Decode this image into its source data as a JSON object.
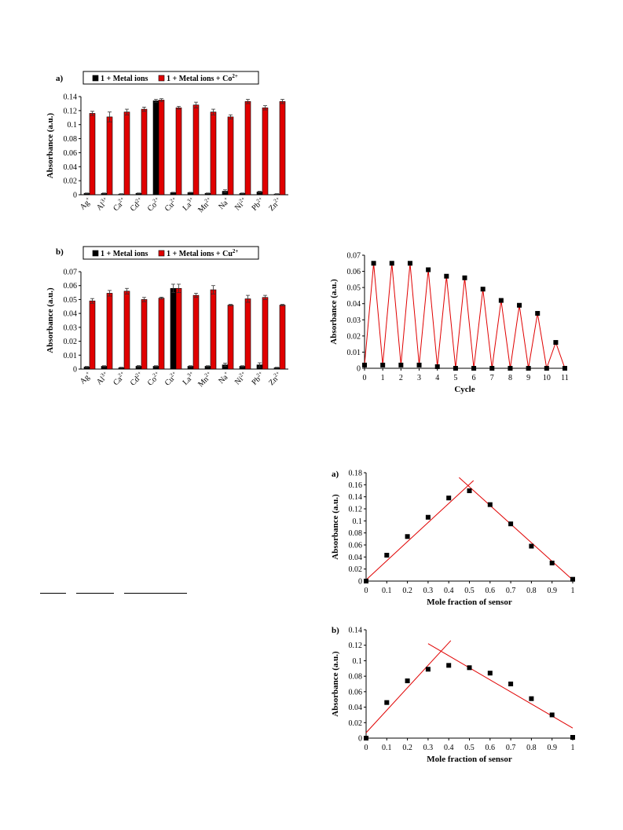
{
  "colors": {
    "black": "#000000",
    "red": "#e00000",
    "fit": "#e00000"
  },
  "chart_data": [
    {
      "id": "bar_co",
      "type": "bar",
      "panel_label": "a)",
      "ylabel": "Absorbance (a.u.)",
      "ylim": [
        0,
        0.14
      ],
      "yticks": [
        0,
        0.02,
        0.04,
        0.06,
        0.08,
        0.1,
        0.12,
        0.14
      ],
      "ytick_labels": [
        "0",
        "0.02",
        "0.04",
        "0.06",
        "0.08",
        "0.1",
        "0.12",
        "0.14"
      ],
      "categories": [
        "Ag",
        "Al",
        "Ca",
        "Cd",
        "Co",
        "Cu",
        "La",
        "Mn",
        "Na",
        "Ni",
        "Pb",
        "Zn"
      ],
      "charges": [
        "+",
        "3+",
        "2+",
        "2+",
        "2+",
        "2+",
        "3+",
        "2+",
        "+",
        "2+",
        "2+",
        "2+"
      ],
      "legend": {
        "placement": "top",
        "entries": [
          "1 + Metal ions",
          "1 + Metal ions + Co"
        ],
        "entry_sup": [
          "",
          "2+"
        ]
      },
      "series": [
        {
          "name": "1 + Metal ions",
          "color": "#000000",
          "values": [
            0.002,
            0.002,
            0.001,
            0.002,
            0.134,
            0.003,
            0.003,
            0.002,
            0.005,
            0.002,
            0.004,
            0.001
          ],
          "errors": [
            0.0005,
            0.0005,
            0.0005,
            0.0005,
            0.002,
            0.0005,
            0.0005,
            0.0005,
            0.002,
            0.0005,
            0.001,
            0.0005
          ]
        },
        {
          "name": "1 + Metal ions + Co2+",
          "color": "#e00000",
          "values": [
            0.116,
            0.111,
            0.118,
            0.122,
            0.135,
            0.124,
            0.128,
            0.118,
            0.111,
            0.133,
            0.124,
            0.133
          ],
          "errors": [
            0.003,
            0.007,
            0.004,
            0.003,
            0.002,
            0.002,
            0.004,
            0.004,
            0.003,
            0.003,
            0.003,
            0.003
          ]
        }
      ]
    },
    {
      "id": "bar_cu",
      "type": "bar",
      "panel_label": "b)",
      "ylabel": "Absorbance (a.u.)",
      "ylim": [
        0,
        0.07
      ],
      "yticks": [
        0,
        0.01,
        0.02,
        0.03,
        0.04,
        0.05,
        0.06,
        0.07
      ],
      "ytick_labels": [
        "0",
        "0.01",
        "0.02",
        "0.03",
        "0.04",
        "0.05",
        "0.06",
        "0.07"
      ],
      "categories": [
        "Ag",
        "Al",
        "Ca",
        "Cd",
        "Co",
        "Cu",
        "La",
        "Mn",
        "Na",
        "Ni",
        "Pb",
        "Zn"
      ],
      "charges": [
        "+",
        "3+",
        "2+",
        "2+",
        "2+",
        "2+",
        "3+",
        "2+",
        "+",
        "2+",
        "2+",
        "2+"
      ],
      "legend": {
        "placement": "top",
        "entries": [
          "1 + Metal ions",
          "1 + Metal ions + Cu"
        ],
        "entry_sup": [
          "",
          "2+"
        ]
      },
      "series": [
        {
          "name": "1 + Metal ions",
          "color": "#000000",
          "values": [
            0.0015,
            0.002,
            0.001,
            0.002,
            0.002,
            0.058,
            0.002,
            0.002,
            0.003,
            0.002,
            0.003,
            0.001
          ],
          "errors": [
            0.0004,
            0.0004,
            0.0003,
            0.0005,
            0.0004,
            0.003,
            0.0004,
            0.0004,
            0.0012,
            0.0004,
            0.0015,
            0.0003
          ]
        },
        {
          "name": "1 + Metal ions + Cu2+",
          "color": "#e00000",
          "values": [
            0.049,
            0.0545,
            0.056,
            0.05,
            0.051,
            0.058,
            0.053,
            0.057,
            0.046,
            0.0505,
            0.0515,
            0.046
          ],
          "errors": [
            0.0017,
            0.002,
            0.002,
            0.0015,
            0.0007,
            0.003,
            0.0015,
            0.003,
            0.0005,
            0.0025,
            0.0015,
            0.0005
          ]
        }
      ]
    },
    {
      "id": "cycle",
      "type": "line",
      "ylabel": "Absorbance (a.u.)",
      "xlabel": "Cycle",
      "xlim": [
        0,
        11
      ],
      "ylim": [
        0,
        0.07
      ],
      "xticks": [
        0,
        1,
        2,
        3,
        4,
        5,
        6,
        7,
        8,
        9,
        10,
        11
      ],
      "xtick_labels": [
        "0",
        "1",
        "2",
        "3",
        "4",
        "5",
        "6",
        "7",
        "8",
        "9",
        "10",
        "11"
      ],
      "yticks": [
        0,
        0.01,
        0.02,
        0.03,
        0.04,
        0.05,
        0.06,
        0.07
      ],
      "ytick_labels": [
        "0",
        "0.01",
        "0.02",
        "0.03",
        "0.04",
        "0.05",
        "0.06",
        "0.07"
      ],
      "x": [
        0,
        0.5,
        1,
        1.5,
        2,
        2.5,
        3,
        3.5,
        4,
        4.5,
        5,
        5.5,
        6,
        6.5,
        7,
        7.5,
        8,
        8.5,
        9,
        9.5,
        10,
        10.5,
        11
      ],
      "y": [
        0.002,
        0.065,
        0.002,
        0.065,
        0.002,
        0.065,
        0.002,
        0.061,
        0.001,
        0.057,
        0.0,
        0.056,
        0.0,
        0.049,
        0.0,
        0.042,
        0.0,
        0.039,
        0.0,
        0.034,
        0.0,
        0.016,
        0.0
      ]
    },
    {
      "id": "job_a",
      "type": "scatter",
      "panel_label": "a)",
      "ylabel": "Absorbance (a.u.)",
      "xlabel": "Mole fraction of sensor",
      "xlim": [
        0,
        1
      ],
      "ylim": [
        0,
        0.18
      ],
      "xticks": [
        0,
        0.1,
        0.2,
        0.3,
        0.4,
        0.5,
        0.6,
        0.7,
        0.8,
        0.9,
        1
      ],
      "xtick_labels": [
        "0",
        "0.1",
        "0.2",
        "0.3",
        "0.4",
        "0.5",
        "0.6",
        "0.7",
        "0.8",
        "0.9",
        "1"
      ],
      "yticks": [
        0,
        0.02,
        0.04,
        0.06,
        0.08,
        0.1,
        0.12,
        0.14,
        0.16,
        0.18
      ],
      "ytick_labels": [
        "0",
        "0.02",
        "0.04",
        "0.06",
        "0.08",
        "0.1",
        "0.12",
        "0.14",
        "0.16",
        "0.18"
      ],
      "x": [
        0,
        0.1,
        0.2,
        0.3,
        0.4,
        0.5,
        0.6,
        0.7,
        0.8,
        0.9,
        1
      ],
      "y": [
        0.0,
        0.043,
        0.074,
        0.106,
        0.138,
        0.15,
        0.127,
        0.095,
        0.058,
        0.03,
        0.003
      ],
      "fit_lines": [
        {
          "x": [
            0,
            0.52
          ],
          "y": [
            0.002,
            0.167
          ]
        },
        {
          "x": [
            0.45,
            1
          ],
          "y": [
            0.172,
            0.002
          ]
        }
      ]
    },
    {
      "id": "job_b",
      "type": "scatter",
      "panel_label": "b)",
      "ylabel": "Absorbance (a.u.)",
      "xlabel": "Mole fraction of sensor",
      "xlim": [
        0,
        1
      ],
      "ylim": [
        0,
        0.14
      ],
      "xticks": [
        0,
        0.1,
        0.2,
        0.3,
        0.4,
        0.5,
        0.6,
        0.7,
        0.8,
        0.9,
        1
      ],
      "xtick_labels": [
        "0",
        "0.1",
        "0.2",
        "0.3",
        "0.4",
        "0.5",
        "0.6",
        "0.7",
        "0.8",
        "0.9",
        "1"
      ],
      "yticks": [
        0,
        0.02,
        0.04,
        0.06,
        0.08,
        0.1,
        0.12,
        0.14
      ],
      "ytick_labels": [
        "0",
        "0.02",
        "0.04",
        "0.06",
        "0.08",
        "0.1",
        "0.12",
        "0.14"
      ],
      "x": [
        0,
        0.1,
        0.2,
        0.3,
        0.4,
        0.5,
        0.6,
        0.7,
        0.8,
        0.9,
        1
      ],
      "y": [
        0.0,
        0.046,
        0.074,
        0.089,
        0.094,
        0.091,
        0.084,
        0.07,
        0.051,
        0.03,
        0.001
      ],
      "fit_lines": [
        {
          "x": [
            0,
            0.41
          ],
          "y": [
            0.007,
            0.126
          ]
        },
        {
          "x": [
            0.3,
            1
          ],
          "y": [
            0.122,
            0.013
          ]
        }
      ]
    }
  ]
}
